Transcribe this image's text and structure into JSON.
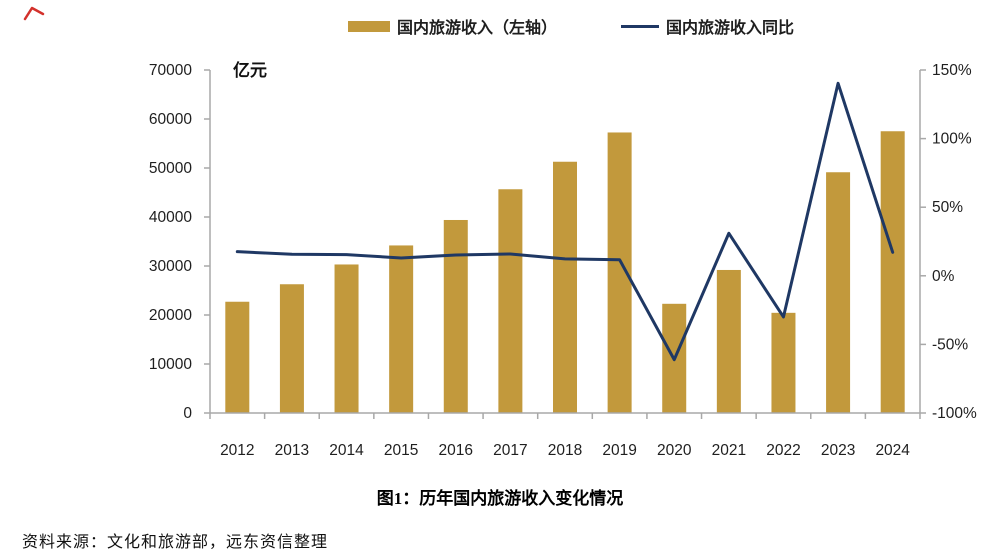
{
  "caption": {
    "title": "图1：历年国内旅游收入变化情况"
  },
  "source": {
    "text": "资料来源：文化和旅游部，远东资信整理"
  },
  "colors": {
    "bar": "#C2993C",
    "line": "#1F3864",
    "axis": "#A8A8A8",
    "tick_text": "#1F1F1F",
    "red_mark": "#D3312C"
  },
  "chart_data": {
    "type": "bar",
    "subtype": "bar+line combo, dual axis",
    "title": "图1：历年国内旅游收入变化情况",
    "unit_label": "亿元",
    "categories": [
      "2012",
      "2013",
      "2014",
      "2015",
      "2016",
      "2017",
      "2018",
      "2019",
      "2020",
      "2021",
      "2022",
      "2023",
      "2024"
    ],
    "series": [
      {
        "name": "国内旅游收入（左轴）",
        "type": "bar",
        "axis": "left",
        "unit": "亿元",
        "color": "#C2993C",
        "values": [
          22706,
          26276,
          30312,
          34195,
          39390,
          45661,
          51278,
          57251,
          22286,
          29191,
          20444,
          49133,
          57500
        ]
      },
      {
        "name": "国内旅游收入同比",
        "type": "line",
        "axis": "right",
        "unit": "%",
        "color": "#1F3864",
        "values": [
          17.6,
          15.7,
          15.4,
          13.0,
          15.2,
          15.9,
          12.3,
          11.7,
          -61.1,
          31.0,
          -30.0,
          140.3,
          17.1
        ]
      }
    ],
    "left_axis": {
      "label": "亿元",
      "min": 0,
      "max": 70000,
      "tick_step": 10000,
      "ticks": [
        "0",
        "10000",
        "20000",
        "30000",
        "40000",
        "50000",
        "60000",
        "70000"
      ]
    },
    "right_axis": {
      "min": -100,
      "max": 150,
      "tick_step": 50,
      "ticks": [
        "-100%",
        "-50%",
        "0%",
        "50%",
        "100%",
        "150%"
      ]
    },
    "grid": false,
    "legend_position": "top"
  }
}
